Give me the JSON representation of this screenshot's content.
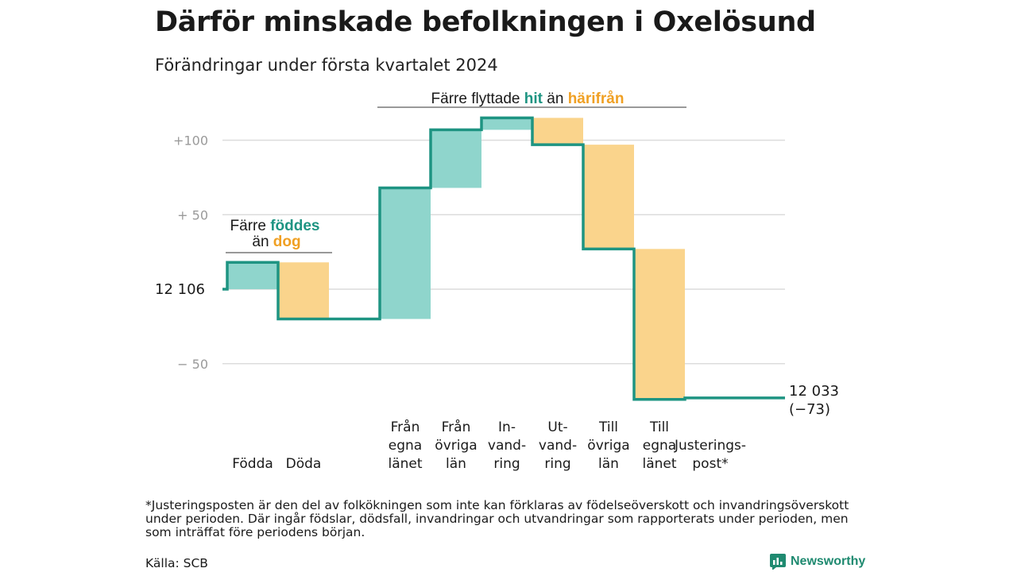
{
  "title": "Därför minskade befolkningen i Oxelösund",
  "subtitle": "Förändringar under första kvartalet 2024",
  "footnote": "*Justeringsposten är den del av folkökningen som inte kan förklaras av födelseöverskott och invandringsöverskott under perioden. Där ingår födslar, dödsfall, invandringar och utvandringar som rapporterats under perioden, men som inträffat före periodens början.",
  "source": "Källa: SCB",
  "brand": "Newsworthy",
  "colors": {
    "increase": "#8fd5cc",
    "decrease": "#fad48c",
    "line": "#1e9482",
    "green_text": "#1e9482",
    "orange_text": "#f0a023",
    "grid": "#dcdcdc",
    "tick": "#9a9a9a"
  },
  "chart_data": {
    "type": "waterfall",
    "start_value": 12106,
    "start_label": "12  106",
    "end_value": 12033,
    "end_label": "12 033",
    "end_change_label": "(−73)",
    "y_ticks": [
      {
        "value": 100,
        "label": "+100"
      },
      {
        "value": 50,
        "label": "+  50"
      },
      {
        "value": 0,
        "label": ""
      },
      {
        "value": -50,
        "label": "−  50"
      }
    ],
    "ylim": [
      -78,
      118
    ],
    "steps": [
      {
        "label_lines": [
          "Födda"
        ],
        "change": 18
      },
      {
        "label_lines": [
          "Döda"
        ],
        "change": -38
      },
      {
        "label_lines": [],
        "change": 0
      },
      {
        "label_lines": [
          "Från",
          "egna",
          "länet"
        ],
        "change": 88
      },
      {
        "label_lines": [
          "Från",
          "övriga",
          "län"
        ],
        "change": 39
      },
      {
        "label_lines": [
          "In-",
          "vand-",
          "ring"
        ],
        "change": 8
      },
      {
        "label_lines": [
          "Ut-",
          "vand-",
          "ring"
        ],
        "change": -18
      },
      {
        "label_lines": [
          "Till",
          "övriga",
          "län"
        ],
        "change": -70
      },
      {
        "label_lines": [
          "Till",
          "egna",
          "länet"
        ],
        "change": -101
      },
      {
        "label_lines": [
          "Justerings-",
          "post*"
        ],
        "change": 1
      }
    ],
    "annotations": [
      {
        "id": "birth",
        "parts": [
          {
            "text": "Färre ",
            "color": "dark"
          },
          {
            "text": "föddes",
            "color": "green"
          }
        ],
        "parts2": [
          {
            "text": "än ",
            "color": "dark"
          },
          {
            "text": "dog",
            "color": "orange"
          }
        ]
      },
      {
        "id": "migration",
        "parts": [
          {
            "text": "Färre flyttade ",
            "color": "dark"
          },
          {
            "text": "hit",
            "color": "green"
          },
          {
            "text": " än ",
            "color": "dark"
          },
          {
            "text": "härifrån",
            "color": "orange"
          }
        ]
      }
    ]
  }
}
